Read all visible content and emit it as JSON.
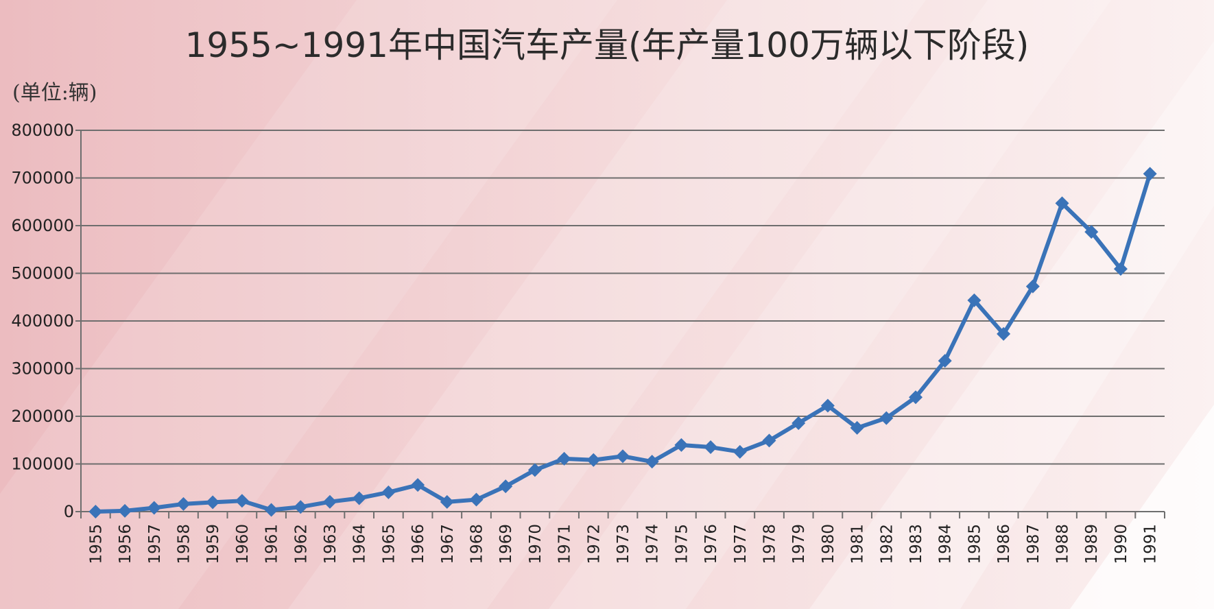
{
  "colors": {
    "series_line": "#3a73b8",
    "gridline": "#6e6e6e",
    "background": "#f7dfe0",
    "text": "#2b2b2b"
  },
  "chart_data": {
    "type": "line",
    "title": "1955~1991年中国汽车产量(年产量100万辆以下阶段)",
    "unit_label": "(单位:辆)",
    "xlabel": "",
    "ylabel": "",
    "ylim": [
      0,
      800000
    ],
    "yticks": [
      "0",
      "100000",
      "200000",
      "300000",
      "400000",
      "500000",
      "600000",
      "700000",
      "800000"
    ],
    "grid": true,
    "legend": "none",
    "categories": [
      "1955",
      "1956",
      "1957",
      "1958",
      "1959",
      "1960",
      "1961",
      "1962",
      "1963",
      "1964",
      "1965",
      "1966",
      "1967",
      "1968",
      "1969",
      "1970",
      "1971",
      "1972",
      "1973",
      "1974",
      "1975",
      "1976",
      "1977",
      "1978",
      "1979",
      "1980",
      "1981",
      "1982",
      "1983",
      "1984",
      "1985",
      "1986",
      "1987",
      "1988",
      "1989",
      "1990",
      "1991"
    ],
    "series": [
      {
        "values": [
          61,
          1654,
          7904,
          16000,
          19601,
          22574,
          3589,
          9740,
          20579,
          28062,
          40542,
          55861,
          20381,
          25100,
          53100,
          87166,
          111022,
          108227,
          116193,
          104771,
          139800,
          135200,
          125400,
          149062,
          185700,
          222288,
          175645,
          196304,
          239886,
          316367,
          443377,
          372753,
          472538,
          646951,
          586936,
          509242,
          708820
        ]
      }
    ]
  }
}
